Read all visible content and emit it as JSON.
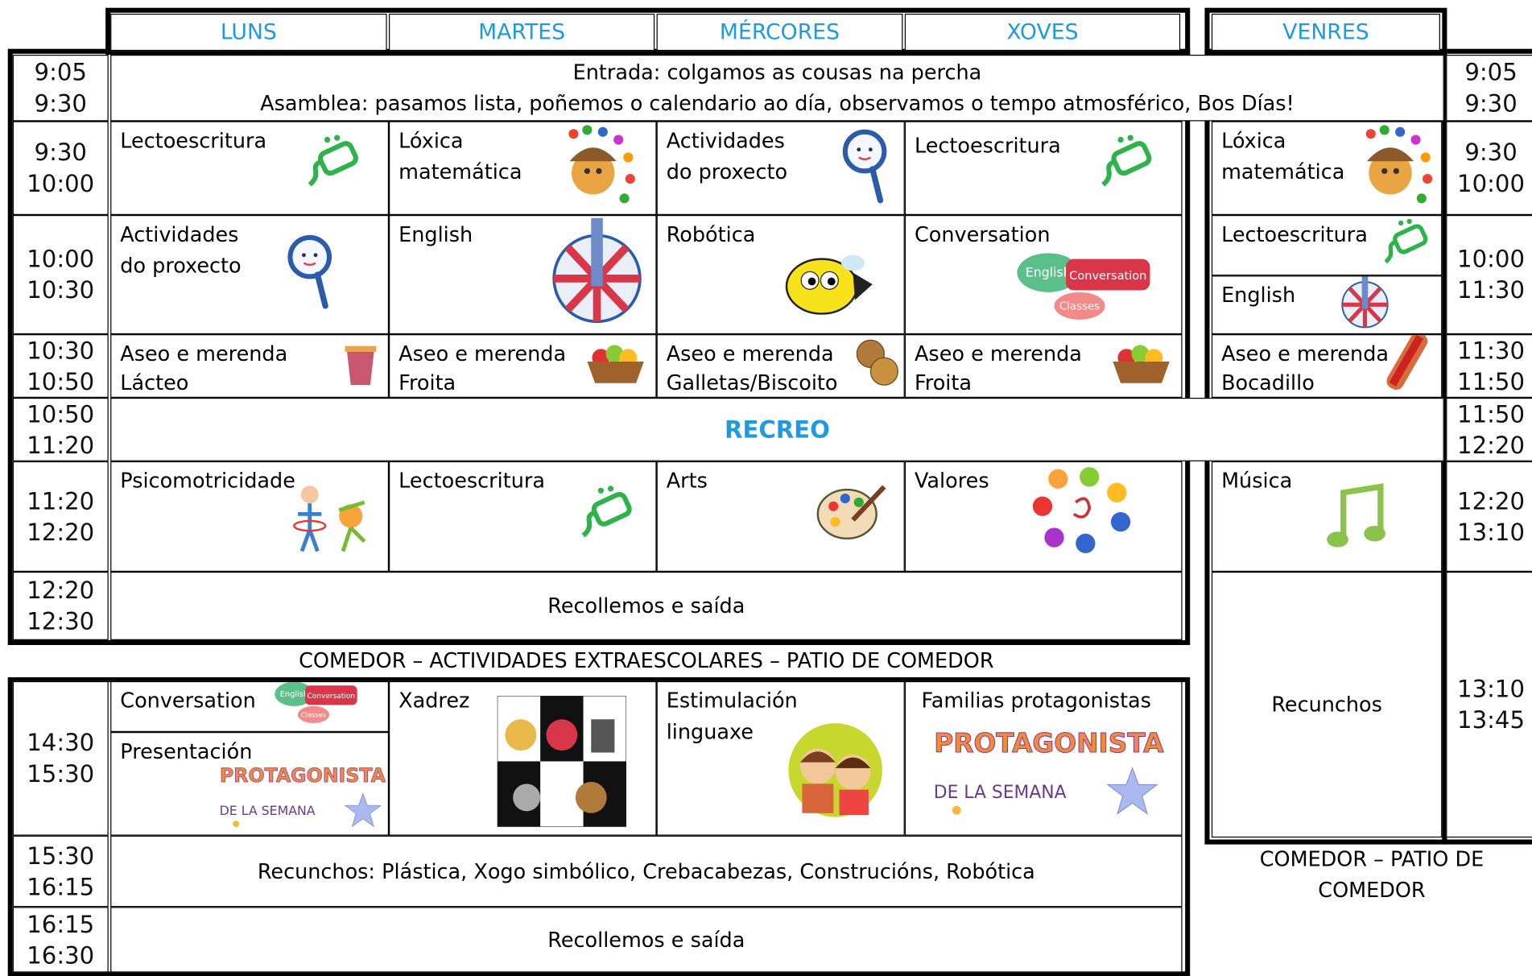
{
  "days": [
    "LUNS",
    "MARTES",
    "MÉRCORES",
    "XOVES",
    "VENRES"
  ],
  "times_left": [
    [
      "9:05",
      "9:30"
    ],
    [
      "9:30",
      "10:00"
    ],
    [
      "10:00",
      "10:30"
    ],
    [
      "10:30",
      "10:50"
    ],
    [
      "10:50",
      "11:20"
    ],
    [
      "11:20",
      "12:20"
    ],
    [
      "12:20",
      "12:30"
    ],
    [
      "14:30",
      "15:30"
    ],
    [
      "15:30",
      "16:15"
    ],
    [
      "16:15",
      "16:30"
    ]
  ],
  "times_right": [
    [
      "9:05",
      "9:30"
    ],
    [
      "9:30",
      "10:00"
    ],
    [
      "10:00",
      "11:30"
    ],
    [
      "11:30",
      "11:50"
    ],
    [
      "11:50",
      "12:20"
    ],
    [
      "12:20",
      "13:10"
    ],
    [
      "13:10",
      "13:45"
    ]
  ],
  "welcome": [
    "Entrada: colgamos as cousas na percha",
    "Asamblea: pasamos lista, poñemos o calendario ao día, observamos o tempo atmosférico, Bos Días!"
  ],
  "slot1": [
    "Lectoescritura",
    "Lóxica matemática",
    "Actividades do proxecto",
    "Lectoescritura"
  ],
  "slot2": [
    "Actividades do proxecto",
    "English",
    "Robótica",
    "Conversation"
  ],
  "snack": [
    {
      "title": "Aseo e merenda",
      "food": "Lácteo"
    },
    {
      "title": "Aseo e merenda",
      "food": "Froita"
    },
    {
      "title": "Aseo e merenda",
      "food": "Galletas/Biscoito"
    },
    {
      "title": "Aseo e merenda",
      "food": "Froita"
    }
  ],
  "recreo": "RECREO",
  "slot4": [
    "Psicomotricidade",
    "Lectoescritura",
    "Arts",
    "Valores"
  ],
  "exit": "Recollemos e saída",
  "friday": {
    "slot1": "Lóxica matemática",
    "slot2": [
      "Lectoescritura",
      "English"
    ],
    "snack": {
      "title": "Aseo e merenda",
      "food": "Bocadillo"
    },
    "slot4": "Música",
    "recunchos": "Recunchos"
  },
  "lunch_note": "COMEDOR – ACTIVIDADES EXTRAESCOLARES – PATIO DE COMEDOR",
  "friday_note": "COMEDOR – PATIO DE COMEDOR",
  "afternoon": {
    "monday": [
      "Conversation",
      "Presentación"
    ],
    "activities": [
      "Xadrez",
      "Estimulación linguaxe",
      "Familias protagonistas"
    ],
    "recunchos": "Recunchos: Plástica, Xogo simbólico, Crebacabezas, Construcións, Robótica",
    "exit": "Recollemos e saída"
  },
  "image_texts": {
    "english": "English",
    "conversation": "Conversation",
    "classes": "Classes",
    "protagonista": "PROTAGONISTA",
    "semana": "DE LA SEMANA"
  }
}
